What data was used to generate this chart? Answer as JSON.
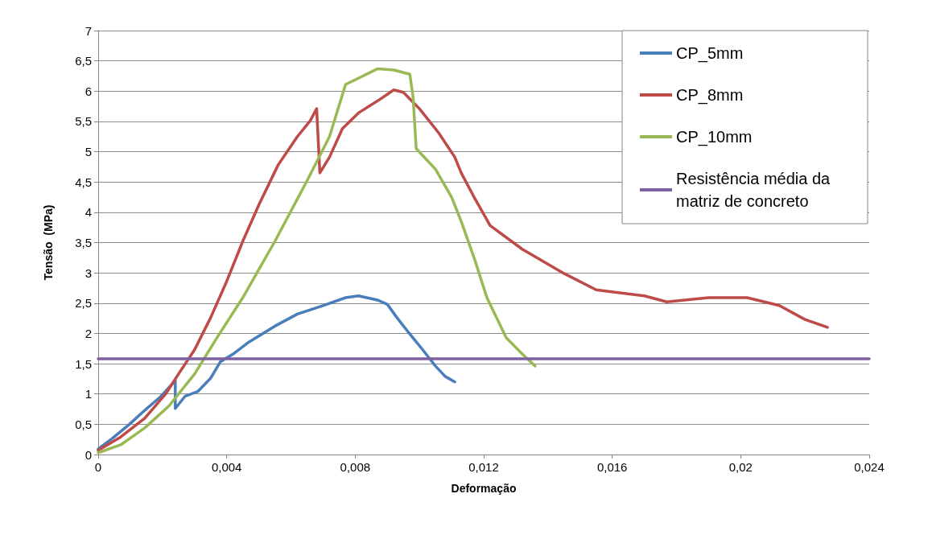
{
  "chart_data": {
    "type": "line",
    "xlabel": "Deformação",
    "ylabel": "Tensão  (MPa)",
    "xlim": [
      0,
      0.024
    ],
    "ylim": [
      0,
      7
    ],
    "xticks": [
      0,
      {
        "value": 0.004,
        "label": "0,004"
      },
      {
        "value": 0.008,
        "label": "0,008"
      },
      {
        "value": 0.012,
        "label": "0,012"
      },
      {
        "value": 0.016,
        "label": "0,016"
      },
      {
        "value": 0.02,
        "label": "0,02"
      },
      {
        "value": 0.024,
        "label": "0,024"
      }
    ],
    "yticks": [
      0,
      {
        "value": 0.5,
        "label": "0,5"
      },
      1,
      {
        "value": 1.5,
        "label": "1,5"
      },
      2,
      {
        "value": 2.5,
        "label": "2,5"
      },
      3,
      {
        "value": 3.5,
        "label": "3,5"
      },
      4,
      {
        "value": 4.5,
        "label": "4,5"
      },
      5,
      {
        "value": 5.5,
        "label": "5,5"
      },
      6,
      {
        "value": 6.5,
        "label": "6,5"
      },
      7
    ],
    "grid": "y",
    "legend": "top right",
    "marker": "none",
    "line_style": "solid",
    "series": [
      {
        "name": "CP_5mm",
        "color": "#4a7ebb",
        "x": [
          0,
          0.00045,
          0.00095,
          0.00145,
          0.00195,
          0.0024,
          0.0024,
          0.0027,
          0.0031,
          0.0035,
          0.0038,
          0.0042,
          0.0047,
          0.0055,
          0.0062,
          0.007,
          0.0077,
          0.0081,
          0.0087,
          0.009,
          0.0093,
          0.0097,
          0.0101,
          0.0105,
          0.0108,
          0.0111
        ],
        "values": [
          0.09,
          0.27,
          0.49,
          0.73,
          0.96,
          1.22,
          0.76,
          0.96,
          1.04,
          1.26,
          1.53,
          1.66,
          1.86,
          2.12,
          2.32,
          2.46,
          2.59,
          2.62,
          2.55,
          2.48,
          2.26,
          1.99,
          1.73,
          1.46,
          1.29,
          1.2
        ]
      },
      {
        "name": "CP_8mm",
        "color": "#be4b48",
        "x": [
          0,
          0.0007,
          0.00145,
          0.0021,
          0.0025,
          0.003,
          0.0035,
          0.004,
          0.0045,
          0.005,
          0.0056,
          0.0062,
          0.0066,
          0.0068,
          0.0069,
          0.0072,
          0.0076,
          0.0081,
          0.0087,
          0.0092,
          0.0095,
          0.01,
          0.0106,
          0.0111,
          0.0113,
          0.0117,
          0.0122,
          0.0132,
          0.0145,
          0.0155,
          0.017,
          0.0177,
          0.019,
          0.0202,
          0.0212,
          0.022,
          0.0227
        ],
        "values": [
          0.07,
          0.29,
          0.6,
          1.0,
          1.33,
          1.73,
          2.26,
          2.86,
          3.52,
          4.12,
          4.78,
          5.25,
          5.51,
          5.71,
          4.65,
          4.91,
          5.38,
          5.64,
          5.84,
          6.02,
          5.98,
          5.71,
          5.31,
          4.91,
          4.65,
          4.25,
          3.78,
          3.39,
          2.99,
          2.72,
          2.62,
          2.52,
          2.59,
          2.59,
          2.46,
          2.23,
          2.1
        ]
      },
      {
        "name": "CP_10mm",
        "color": "#98b954",
        "x": [
          0,
          0.0007,
          0.00145,
          0.0022,
          0.003,
          0.0037,
          0.0045,
          0.0055,
          0.0065,
          0.0072,
          0.0077,
          0.0082,
          0.0087,
          0.0092,
          0.0097,
          0.0098,
          0.0099,
          0.0105,
          0.011,
          0.0113,
          0.0117,
          0.0121,
          0.0127,
          0.0132,
          0.0136
        ],
        "values": [
          0.03,
          0.16,
          0.44,
          0.8,
          1.33,
          1.93,
          2.59,
          3.52,
          4.52,
          5.25,
          6.11,
          6.24,
          6.37,
          6.35,
          6.28,
          5.91,
          5.05,
          4.71,
          4.25,
          3.85,
          3.25,
          2.59,
          1.93,
          1.66,
          1.46
        ]
      },
      {
        "name": "Resistência média da matriz de concreto",
        "color": "#7d60a0",
        "x": [
          0,
          0.024
        ],
        "values": [
          1.58,
          1.58
        ]
      }
    ]
  }
}
